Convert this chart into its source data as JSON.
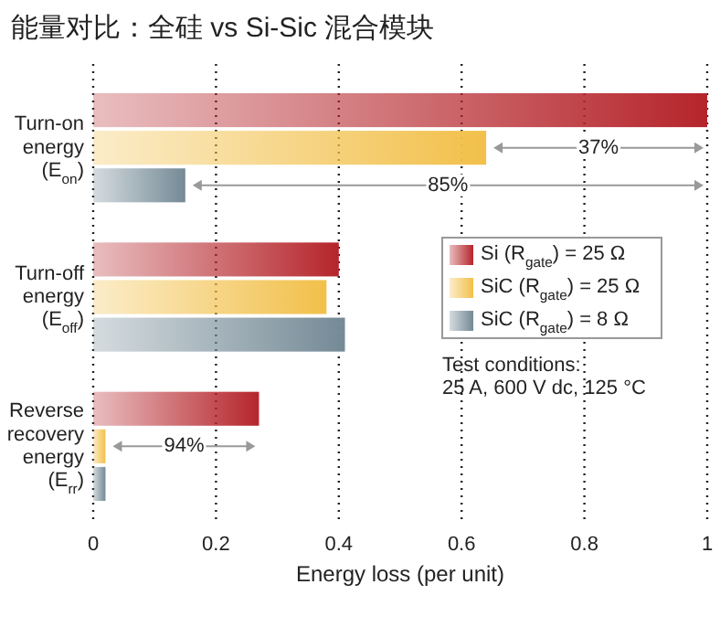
{
  "chart_data": {
    "type": "bar",
    "orientation": "horizontal",
    "title": "能量对比：全硅 vs Si-Sic 混合模块",
    "xlabel": "Energy loss (per unit)",
    "categories": [
      "Turn-on\nenergy\n(E$_{on}$)",
      "Turn-off\nenergy\n(E$_{off}$)",
      "Reverse\nrecovery\nenergy\n(E$_{rr}$)"
    ],
    "series": [
      {
        "name": "Si (R$_{gate}$) = 25 Ω",
        "color": "#b5252b",
        "values": [
          1.0,
          0.4,
          0.27
        ]
      },
      {
        "name": "SiC (R$_{gate}$) = 25 Ω",
        "color": "#f2c04a",
        "values": [
          0.64,
          0.38,
          0.02
        ]
      },
      {
        "name": "SiC (R$_{gate}$) = 8 Ω",
        "color": "#748a96",
        "values": [
          0.15,
          0.41,
          0.02
        ]
      }
    ],
    "xlim": [
      0,
      1
    ],
    "xticks": [
      0,
      0.2,
      0.4,
      0.6,
      0.8,
      1
    ],
    "grid": "x",
    "legend": "right",
    "annotations": [
      "37%",
      "85%",
      "94%",
      "Test conditions:\n25 A, 600 V dc, 125 °C"
    ]
  }
}
